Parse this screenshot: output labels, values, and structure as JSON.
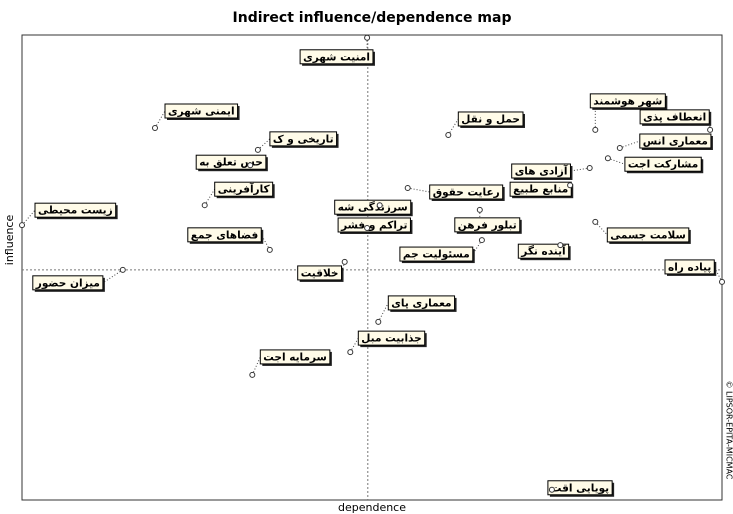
{
  "chart_data": {
    "type": "scatter",
    "title": "Indirect influence/dependence map",
    "x_label": "dependence",
    "y_label": "influence",
    "credit": "© LIPSOR-EPITA-MICMAC",
    "xlim": [
      0,
      100
    ],
    "ylim": [
      0,
      100
    ],
    "reference_lines": {
      "x": 49.4,
      "y": 49.5
    },
    "labels": [
      "امنیت شهری",
      "ایمنی شهری",
      "تاریخی و ک",
      "حس تعلق به",
      "کارآفرینی",
      "فضاهای جمع",
      "زیست محیطی",
      "میزان حضور",
      "خلاقیت",
      "سرزندگی شه",
      "تراکم و فشر",
      "رعایت حقوق",
      "تبلور فرهن",
      "مسئولیت جم",
      "حمل و نقل",
      "آزادی های",
      "منابع طبیع",
      "شهر هوشمند",
      "انعطاف پذی",
      "معماری انس",
      "مشارکت اجت",
      "سلامت جسمی",
      "آینده نگر",
      "پیاده راه",
      "معماری پای",
      "جذابیت مبل",
      "سرمایه اجت",
      "پویایی اقت"
    ],
    "x": [
      49.3,
      19.0,
      33.7,
      32.6,
      26.1,
      35.4,
      0,
      14.4,
      46.1,
      51.1,
      49.3,
      55.1,
      65.4,
      65.7,
      60.9,
      81.1,
      78.3,
      81.9,
      98.3,
      85.4,
      83.7,
      81.9,
      76.9,
      100,
      50.9,
      46.9,
      32.9,
      75.7
    ],
    "values": [
      99.4,
      80.0,
      75.3,
      72.0,
      63.4,
      53.8,
      59.1,
      49.5,
      51.2,
      63.4,
      58.5,
      67.1,
      62.4,
      55.9,
      78.5,
      71.4,
      67.7,
      79.6,
      79.6,
      75.7,
      73.5,
      59.8,
      54.8,
      46.9,
      38.3,
      31.8,
      26.9,
      2.2
    ]
  }
}
